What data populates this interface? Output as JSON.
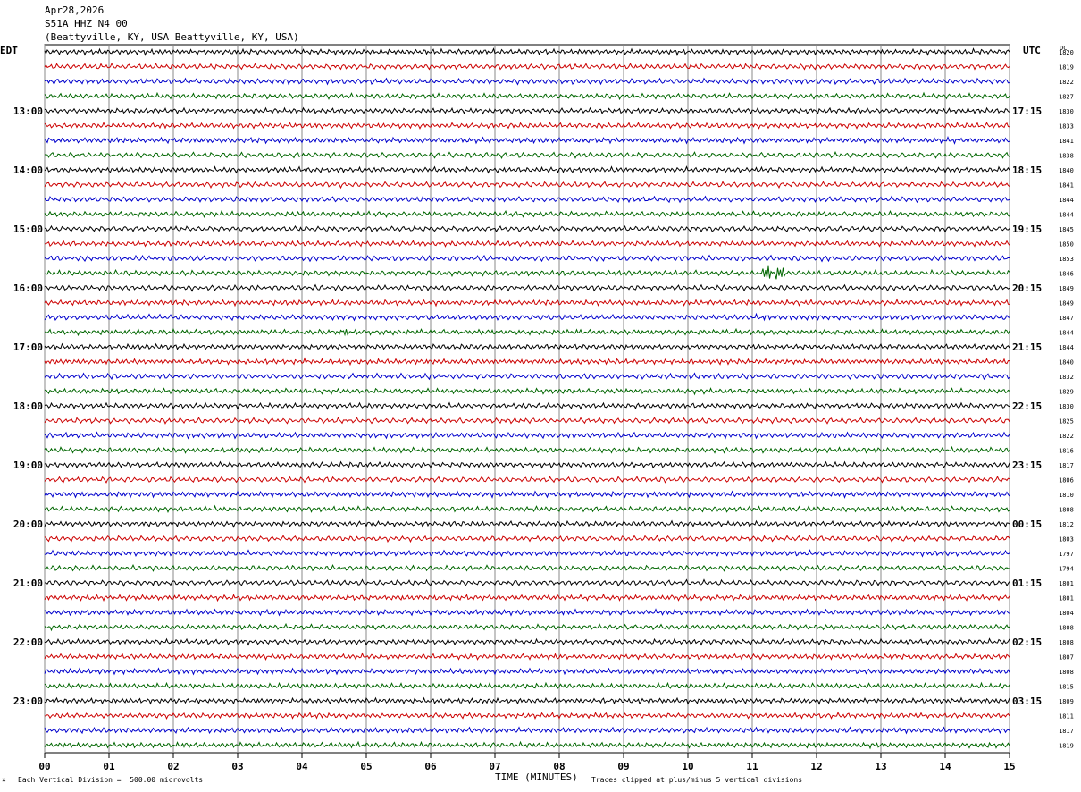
{
  "header": {
    "date": "Apr28,2026",
    "station": "S51A HHZ N4 00",
    "location": "(Beattyville, KY, USA Beattyville, KY, USA)"
  },
  "axes": {
    "left_label": "EDT",
    "right_label": "UTC",
    "dc_label": "DC",
    "xlabel": "TIME (MINUTES)",
    "scale_note": "Each Vertical Division =  500.00 microvolts",
    "clip_note": "Traces clipped at plus/minus 5 vertical divisions",
    "corner_mark": "×"
  },
  "colors": {
    "trace_cycle": [
      "#000000",
      "#cc0000",
      "#0000cc",
      "#006600"
    ],
    "grid": "#888888"
  },
  "chart_data": {
    "type": "line",
    "x_range": [
      0,
      15
    ],
    "x_ticks": [
      "00",
      "01",
      "02",
      "03",
      "04",
      "05",
      "06",
      "07",
      "08",
      "09",
      "10",
      "11",
      "12",
      "13",
      "14",
      "15"
    ],
    "traces_per_hour": 4,
    "edt_hour_labels": [
      "13:00",
      "14:00",
      "15:00",
      "16:00",
      "17:00",
      "18:00",
      "19:00",
      "20:00",
      "21:00",
      "22:00",
      "23:00"
    ],
    "utc_hour_labels": [
      "17:15",
      "18:15",
      "19:15",
      "20:15",
      "21:15",
      "22:15",
      "23:15",
      "00:15",
      "01:15",
      "02:15",
      "03:15"
    ],
    "dc_offsets": [
      "1820",
      "1819",
      "1822",
      "1827",
      "1830",
      "1833",
      "1841",
      "1838",
      "1840",
      "1841",
      "1844",
      "1844",
      "1845",
      "1850",
      "1853",
      "1846",
      "1849",
      "1849",
      "1847",
      "1844",
      "1844",
      "1840",
      "1832",
      "1829",
      "1830",
      "1825",
      "1822",
      "1816",
      "1817",
      "1806",
      "1810",
      "1808",
      "1812",
      "1803",
      "1797",
      "1794",
      "1801",
      "1801",
      "1804",
      "1808",
      "1808",
      "1807",
      "1808",
      "1815",
      "1809",
      "1811",
      "1817",
      "1819"
    ],
    "events": [
      {
        "trace": 15,
        "start_min": 11.0,
        "end_min": 12.2,
        "amplitude": 12
      },
      {
        "trace": 18,
        "start_min": 10.7,
        "end_min": 12.0,
        "amplitude": 3
      },
      {
        "trace": 19,
        "start_min": 4.3,
        "end_min": 5.4,
        "amplitude": 4
      },
      {
        "trace": 17,
        "start_min": 1.6,
        "end_min": 2.0,
        "amplitude": 2
      },
      {
        "trace": 21,
        "start_min": 4.0,
        "end_min": 4.3,
        "amplitude": 2
      }
    ]
  }
}
